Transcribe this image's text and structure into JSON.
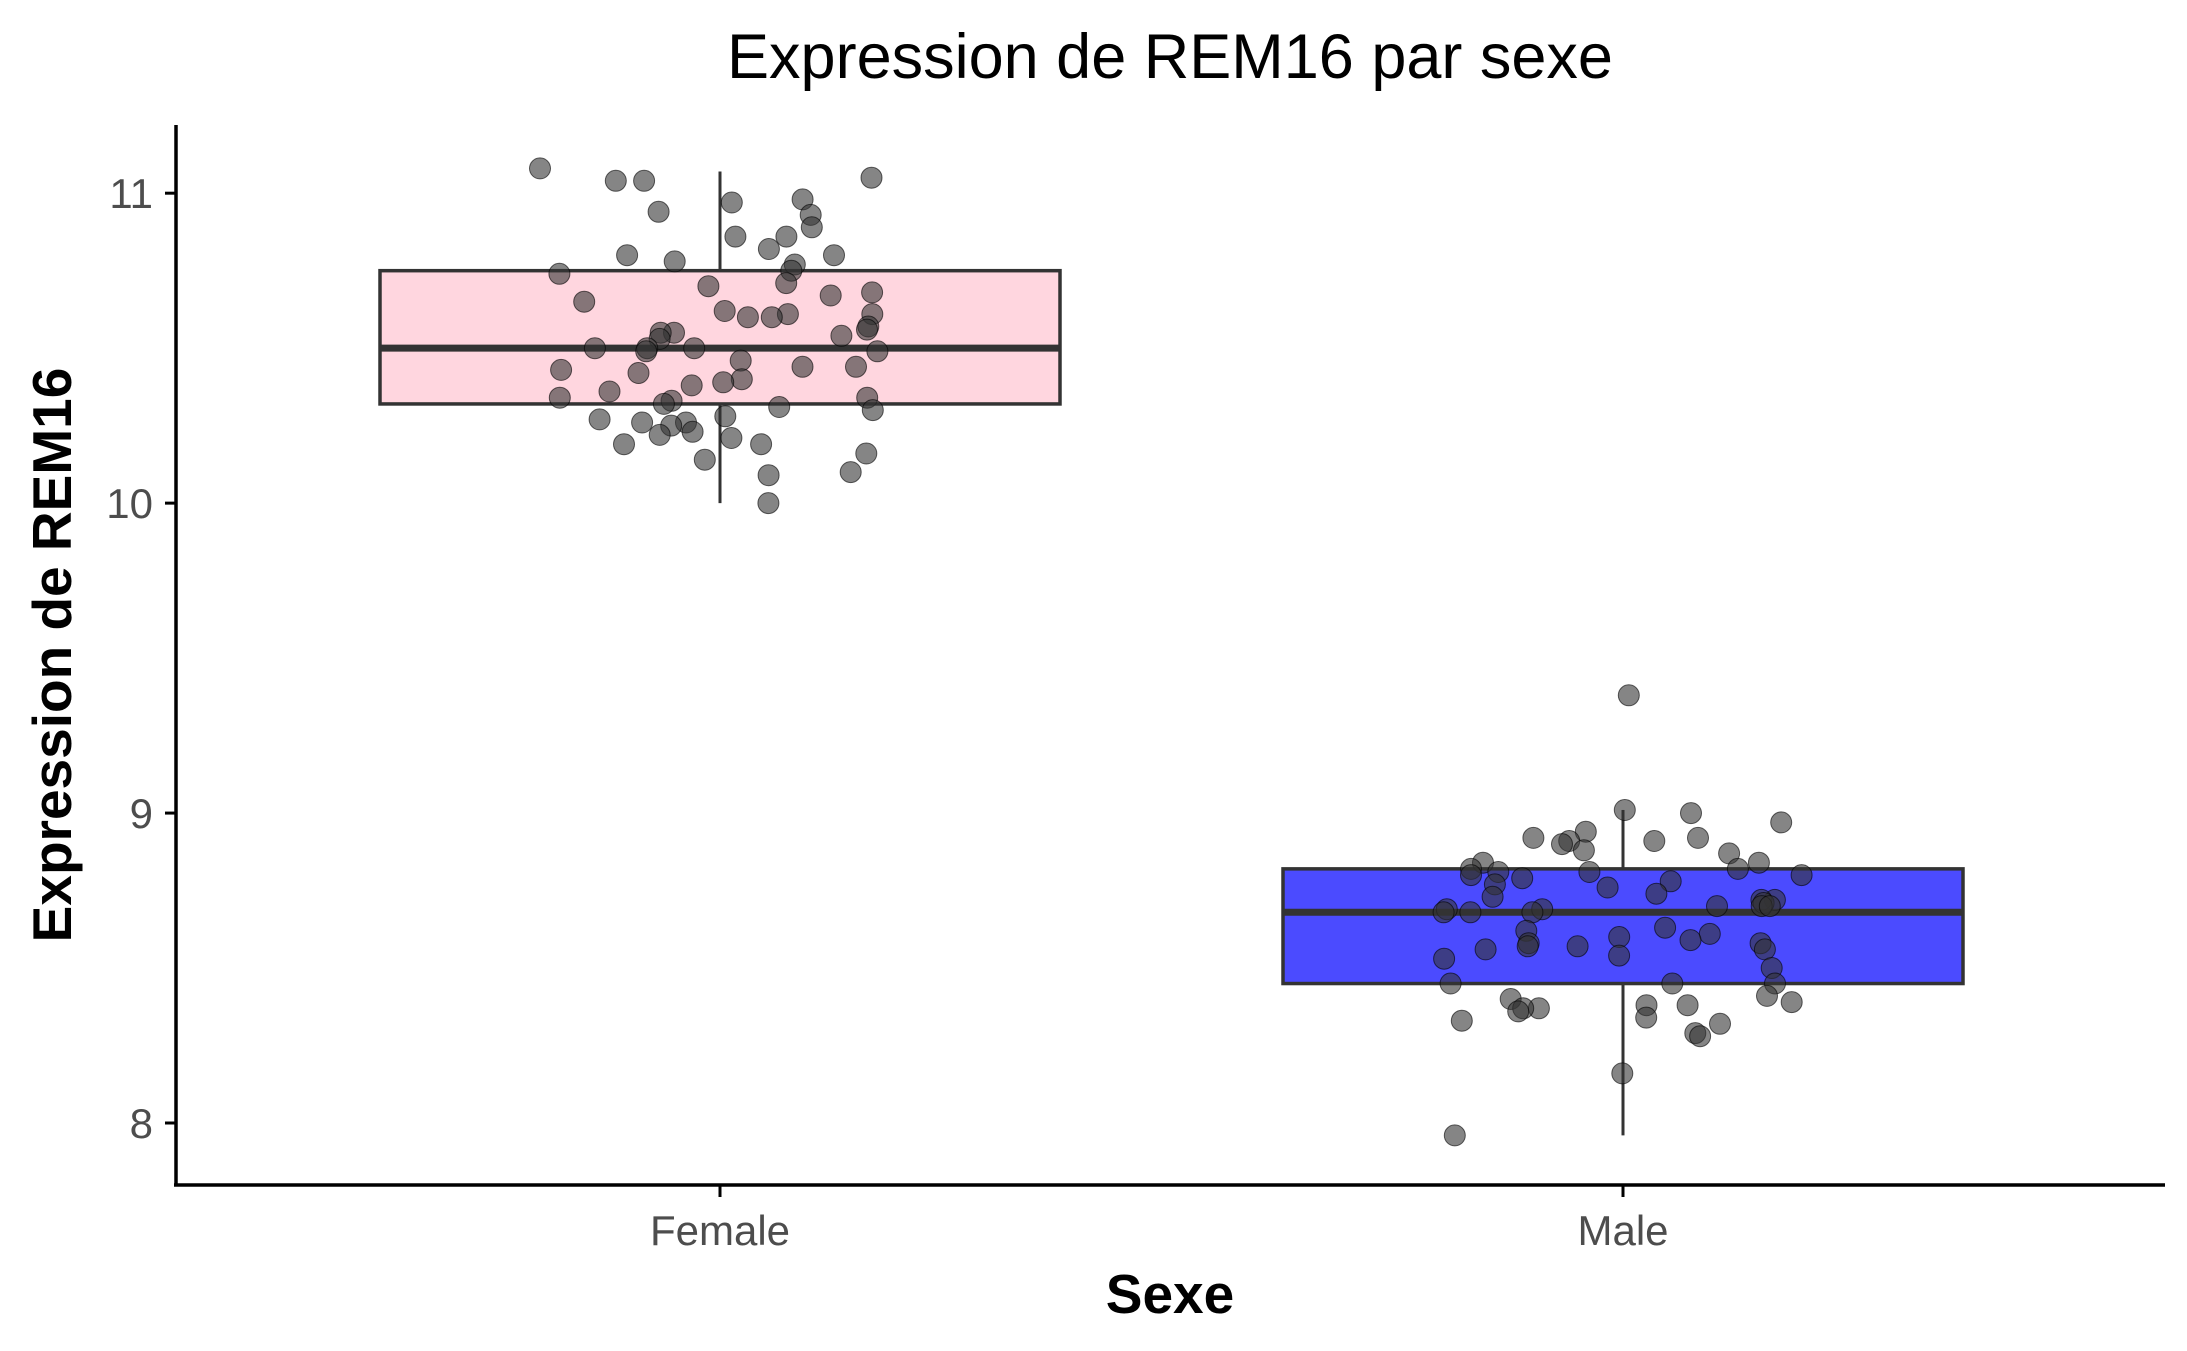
{
  "chart_data": {
    "type": "box",
    "title": "Expression de REM16 par sexe",
    "xlabel": "Sexe",
    "ylabel": "Expression de REM16",
    "categories": [
      "Female",
      "Male"
    ],
    "ylim": [
      7.8,
      11.22
    ],
    "yticks": [
      8,
      9,
      10,
      11
    ],
    "grid": false,
    "legend": "none",
    "boxes": [
      {
        "category": "Female",
        "fill": "#ffd6df",
        "whisker_low": 10.0,
        "q1": 10.32,
        "median": 10.5,
        "q3": 10.75,
        "whisker_high": 11.07
      },
      {
        "category": "Male",
        "fill": "#4b4bff",
        "whisker_low": 7.96,
        "q1": 8.45,
        "median": 8.68,
        "q3": 8.82,
        "whisker_high": 9.01
      }
    ],
    "points_color": "#333333",
    "points": [
      {
        "category": "Female",
        "y": [
          11.08,
          11.05,
          11.04,
          11.04,
          10.98,
          10.97,
          10.94,
          10.93,
          10.89,
          10.86,
          10.86,
          10.82,
          10.8,
          10.8,
          10.78,
          10.77,
          10.75,
          10.74,
          10.71,
          10.7,
          10.68,
          10.67,
          10.65,
          10.62,
          10.61,
          10.61,
          10.6,
          10.6,
          10.57,
          10.56,
          10.55,
          10.55,
          10.54,
          10.53,
          10.5,
          10.5,
          10.5,
          10.49,
          10.49,
          10.46,
          10.44,
          10.44,
          10.43,
          10.42,
          10.4,
          10.39,
          10.38,
          10.36,
          10.34,
          10.34,
          10.33,
          10.32,
          10.31,
          10.3,
          10.28,
          10.27,
          10.26,
          10.26,
          10.25,
          10.23,
          10.22,
          10.21,
          10.19,
          10.19,
          10.16,
          10.14,
          10.1,
          10.09,
          10.0
        ]
      },
      {
        "category": "Male",
        "y": [
          9.38,
          9.01,
          9.0,
          8.97,
          8.94,
          8.92,
          8.92,
          8.91,
          8.91,
          8.9,
          8.88,
          8.87,
          8.84,
          8.84,
          8.82,
          8.82,
          8.81,
          8.81,
          8.8,
          8.8,
          8.79,
          8.78,
          8.77,
          8.76,
          8.74,
          8.73,
          8.72,
          8.72,
          8.71,
          8.7,
          8.7,
          8.7,
          8.69,
          8.69,
          8.68,
          8.68,
          8.68,
          8.63,
          8.62,
          8.61,
          8.6,
          8.59,
          8.58,
          8.58,
          8.57,
          8.57,
          8.56,
          8.56,
          8.54,
          8.53,
          8.5,
          8.45,
          8.45,
          8.45,
          8.41,
          8.4,
          8.39,
          8.38,
          8.38,
          8.37,
          8.37,
          8.36,
          8.34,
          8.33,
          8.32,
          8.29,
          8.28,
          8.16,
          7.96
        ]
      }
    ]
  }
}
